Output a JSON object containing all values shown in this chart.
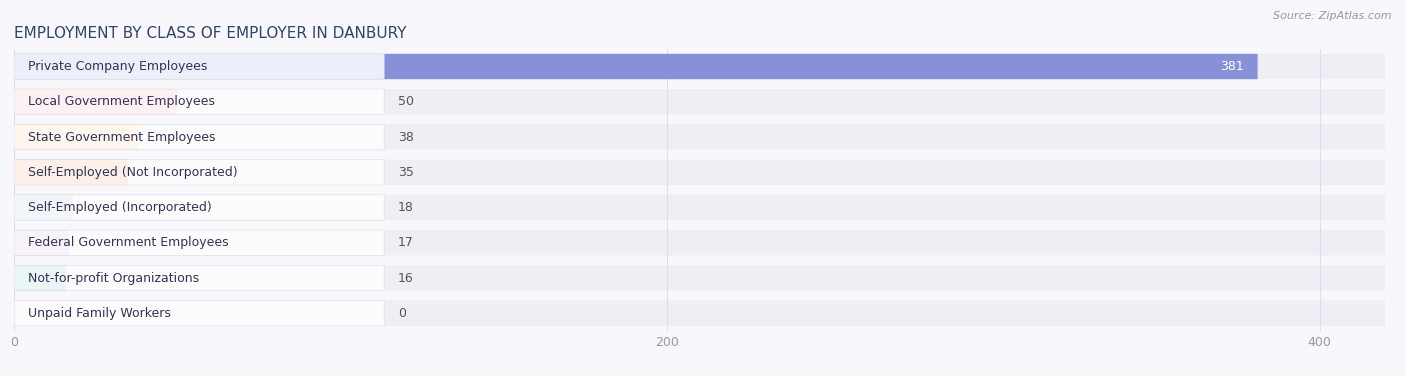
{
  "title": "EMPLOYMENT BY CLASS OF EMPLOYER IN DANBURY",
  "source": "Source: ZipAtlas.com",
  "categories": [
    "Private Company Employees",
    "Local Government Employees",
    "State Government Employees",
    "Self-Employed (Not Incorporated)",
    "Self-Employed (Incorporated)",
    "Federal Government Employees",
    "Not-for-profit Organizations",
    "Unpaid Family Workers"
  ],
  "values": [
    381,
    50,
    38,
    35,
    18,
    17,
    16,
    0
  ],
  "bar_colors": [
    "#8890d8",
    "#f4a8b8",
    "#f8cc90",
    "#f29878",
    "#aac8e4",
    "#ccb4d8",
    "#80ccc4",
    "#bcccea"
  ],
  "xlim_max": 420,
  "xticks": [
    0,
    200,
    400
  ],
  "title_fontsize": 11,
  "label_fontsize": 9,
  "value_fontsize": 9,
  "background_color": "#f8f8fc",
  "row_bg_color": "#eeeeee",
  "label_box_color": "#ffffff",
  "value_label_color_dark": "#555555",
  "value_label_color_light": "#ffffff",
  "grid_color": "#ddddee",
  "title_color": "#334466",
  "source_color": "#999999"
}
